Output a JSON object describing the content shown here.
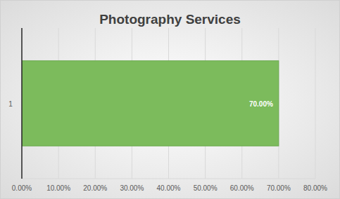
{
  "chart_data": {
    "type": "bar",
    "orientation": "horizontal",
    "title": "Photography Services",
    "categories": [
      "1"
    ],
    "values": [
      70
    ],
    "value_labels": [
      "70.00%"
    ],
    "color": "#7cbb5c",
    "xlim": [
      0,
      80
    ],
    "xticks": [
      {
        "value": 0,
        "label": "0.00%"
      },
      {
        "value": 10,
        "label": "10.00%"
      },
      {
        "value": 20,
        "label": "20.00%"
      },
      {
        "value": 30,
        "label": "30.00%"
      },
      {
        "value": 40,
        "label": "40.00%"
      },
      {
        "value": 50,
        "label": "50.00%"
      },
      {
        "value": 60,
        "label": "60.00%"
      },
      {
        "value": 70,
        "label": "70.00%"
      },
      {
        "value": 80,
        "label": "80.00%"
      }
    ],
    "grid": true,
    "data_labels": true
  }
}
